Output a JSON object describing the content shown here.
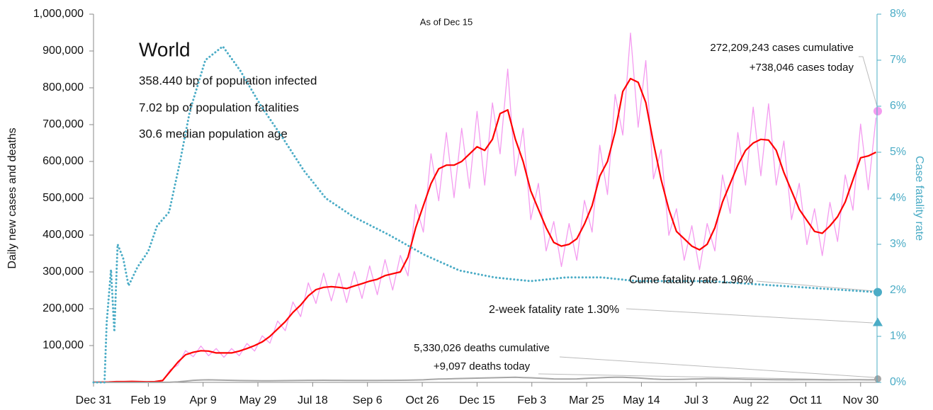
{
  "chart_data": {
    "type": "line",
    "subtitle": "As of Dec 15",
    "info": {
      "title": "World",
      "lines": [
        "358.440 bp of population infected",
        "7.02 bp of population fatalities",
        "30.6 median population age"
      ]
    },
    "ylabel": "Daily new cases and deaths",
    "y2label": "Case fatality rate",
    "xlim": [
      0,
      715
    ],
    "xticks": [
      {
        "value": 0,
        "label": "Dec 31"
      },
      {
        "value": 50,
        "label": "Feb 19"
      },
      {
        "value": 100,
        "label": "Apr 9"
      },
      {
        "value": 150,
        "label": "May 29"
      },
      {
        "value": 200,
        "label": "Jul 18"
      },
      {
        "value": 250,
        "label": "Sep 6"
      },
      {
        "value": 300,
        "label": "Oct 26"
      },
      {
        "value": 350,
        "label": "Dec 15"
      },
      {
        "value": 400,
        "label": "Feb 3"
      },
      {
        "value": 450,
        "label": "Mar 25"
      },
      {
        "value": 500,
        "label": "May 14"
      },
      {
        "value": 550,
        "label": "Jul 3"
      },
      {
        "value": 600,
        "label": "Aug 22"
      },
      {
        "value": 650,
        "label": "Oct 11"
      },
      {
        "value": 700,
        "label": "Nov 30"
      }
    ],
    "ylim": [
      0,
      1000000
    ],
    "yticks": [
      {
        "value": 100000,
        "label": "100,000"
      },
      {
        "value": 200000,
        "label": "200,000"
      },
      {
        "value": 300000,
        "label": "300,000"
      },
      {
        "value": 400000,
        "label": "400,000"
      },
      {
        "value": 500000,
        "label": "500,000"
      },
      {
        "value": 600000,
        "label": "600,000"
      },
      {
        "value": 700000,
        "label": "700,000"
      },
      {
        "value": 800000,
        "label": "800,000"
      },
      {
        "value": 900000,
        "label": "900,000"
      },
      {
        "value": 1000000,
        "label": "1,000,000"
      }
    ],
    "y2lim": [
      0,
      8
    ],
    "y2ticks": [
      {
        "value": 0,
        "label": "0%"
      },
      {
        "value": 1,
        "label": "1%"
      },
      {
        "value": 2,
        "label": "2%"
      },
      {
        "value": 3,
        "label": "3%"
      },
      {
        "value": 4,
        "label": "4%"
      },
      {
        "value": 5,
        "label": "5%"
      },
      {
        "value": 6,
        "label": "6%"
      },
      {
        "value": 7,
        "label": "7%"
      },
      {
        "value": 8,
        "label": "8%"
      }
    ],
    "x": [
      0,
      7,
      14,
      21,
      28,
      35,
      42,
      49,
      56,
      63,
      70,
      77,
      84,
      91,
      98,
      105,
      112,
      119,
      126,
      133,
      140,
      147,
      154,
      161,
      168,
      175,
      182,
      189,
      196,
      203,
      210,
      217,
      224,
      231,
      238,
      245,
      252,
      259,
      266,
      273,
      280,
      287,
      294,
      301,
      308,
      315,
      322,
      329,
      336,
      343,
      350,
      357,
      364,
      371,
      378,
      385,
      392,
      399,
      406,
      413,
      420,
      427,
      434,
      441,
      448,
      455,
      462,
      469,
      476,
      483,
      490,
      497,
      504,
      511,
      518,
      525,
      532,
      539,
      546,
      553,
      560,
      567,
      574,
      581,
      588,
      595,
      602,
      609,
      616,
      623,
      630,
      637,
      644,
      651,
      658,
      665,
      672,
      679,
      686,
      693,
      700,
      707,
      714
    ],
    "series": [
      {
        "color": "#f49bf0",
        "width": 1.3,
        "values": [
          600,
          700,
          1200,
          1700,
          2300,
          2100,
          2300,
          1300,
          2300,
          4300,
          34500,
          46800,
          86300,
          69700,
          98900,
          72300,
          92000,
          68000,
          92000,
          72300,
          105800,
          85000,
          126500,
          106300,
          166800,
          140300,
          218500,
          178500,
          270300,
          214200,
          296700,
          221000,
          296700,
          216800,
          301300,
          227800,
          316300,
          238000,
          333500,
          250800,
          345000,
          289000,
          483000,
          408000,
          621000,
          493000,
          678500,
          501500,
          690000,
          527000,
          736000,
          535500,
          759000,
          620500,
          851000,
          561000,
          690000,
          442000,
          540500,
          357000,
          437000,
          314500,
          431300,
          331500,
          494500,
          408000,
          644000,
          510000,
          782000,
          671500,
          948800,
          692800,
          874000,
          552500,
          632500,
          399500,
          471500,
          331500,
          425500,
          306000,
          431300,
          357000,
          563500,
          459000,
          678500,
          535500,
          747500,
          561000,
          756700,
          535500,
          655500,
          442000,
          540500,
          374000,
          471500,
          344300,
          488800,
          382500,
          563500,
          467500,
          701500,
          522800,
          718800
        ]
      },
      {
        "color": "#ff0000",
        "width": 2.2,
        "values": [
          500,
          800,
          1000,
          2000,
          2000,
          2500,
          2000,
          1500,
          2000,
          5000,
          30000,
          55000,
          75000,
          82000,
          86000,
          85000,
          80000,
          80000,
          80000,
          85000,
          92000,
          100000,
          110000,
          125000,
          145000,
          165000,
          190000,
          210000,
          235000,
          252000,
          258000,
          260000,
          258000,
          255000,
          262000,
          268000,
          275000,
          280000,
          290000,
          295000,
          300000,
          340000,
          420000,
          480000,
          540000,
          580000,
          590000,
          590000,
          600000,
          620000,
          640000,
          630000,
          660000,
          730000,
          740000,
          660000,
          600000,
          520000,
          470000,
          420000,
          380000,
          370000,
          375000,
          390000,
          430000,
          480000,
          560000,
          600000,
          680000,
          790000,
          825000,
          815000,
          760000,
          650000,
          550000,
          470000,
          410000,
          390000,
          370000,
          360000,
          375000,
          420000,
          490000,
          540000,
          590000,
          630000,
          650000,
          660000,
          658000,
          630000,
          570000,
          520000,
          470000,
          440000,
          410000,
          405000,
          425000,
          450000,
          490000,
          550000,
          610000,
          615000,
          625000
        ]
      },
      {
        "color": "#a6a6a6",
        "width": 2,
        "values": [
          0,
          0,
          10,
          50,
          70,
          80,
          70,
          60,
          70,
          200,
          500,
          1500,
          3500,
          5500,
          6500,
          7000,
          6500,
          6000,
          5500,
          5000,
          4800,
          4600,
          4500,
          4500,
          4600,
          4800,
          5000,
          5200,
          5500,
          5600,
          5700,
          5600,
          5500,
          5400,
          5300,
          5200,
          5300,
          5400,
          5500,
          5600,
          5700,
          6000,
          6500,
          7000,
          8000,
          9000,
          9500,
          10000,
          10500,
          11000,
          11500,
          12000,
          12500,
          13000,
          13500,
          14000,
          13000,
          12500,
          11500,
          10500,
          9500,
          9000,
          9000,
          9500,
          10500,
          11500,
          12500,
          13500,
          14000,
          13800,
          13000,
          12000,
          10500,
          9000,
          8000,
          7800,
          8000,
          8500,
          9000,
          9500,
          10000,
          10200,
          10000,
          9500,
          9000,
          8500,
          8000,
          7800,
          7500,
          7300,
          7200,
          7000,
          7100,
          7200,
          7300,
          7000,
          6800,
          6900,
          7000,
          7100,
          7200,
          7000,
          7100
        ]
      },
      {
        "color": "#4bacc6",
        "width": 3,
        "dotted": true,
        "axis": "y2",
        "x": [
          0,
          10,
          12,
          16,
          19,
          22,
          27,
          32,
          40,
          50,
          58,
          69,
          79,
          88,
          102,
          118,
          134,
          153,
          173,
          192,
          212,
          237,
          270,
          302,
          334,
          366,
          399,
          431,
          464,
          496,
          561,
          625,
          715
        ],
        "values": [
          0,
          0,
          1.3,
          2.45,
          1.1,
          3.0,
          2.7,
          2.1,
          2.5,
          2.85,
          3.4,
          3.7,
          4.8,
          5.9,
          7.0,
          7.3,
          6.77,
          6.0,
          5.3,
          4.6,
          4.0,
          3.6,
          3.2,
          2.77,
          2.43,
          2.28,
          2.2,
          2.28,
          2.28,
          2.2,
          2.2,
          2.1,
          1.96
        ]
      }
    ],
    "markers": [
      {
        "label": "Cume fatality rate 1.96%",
        "value": 1.96,
        "shape": "circle",
        "color": "#4bacc6"
      },
      {
        "label": "2-week fatality rate 1.30%",
        "value": 1.3,
        "shape": "triangle",
        "color": "#4bacc6"
      }
    ],
    "cases_note": [
      "272,209,243 cases cumulative",
      "+738,046 cases today"
    ],
    "deaths_note": [
      "5,330,026 deaths cumulative",
      "+9,097 deaths today"
    ]
  }
}
